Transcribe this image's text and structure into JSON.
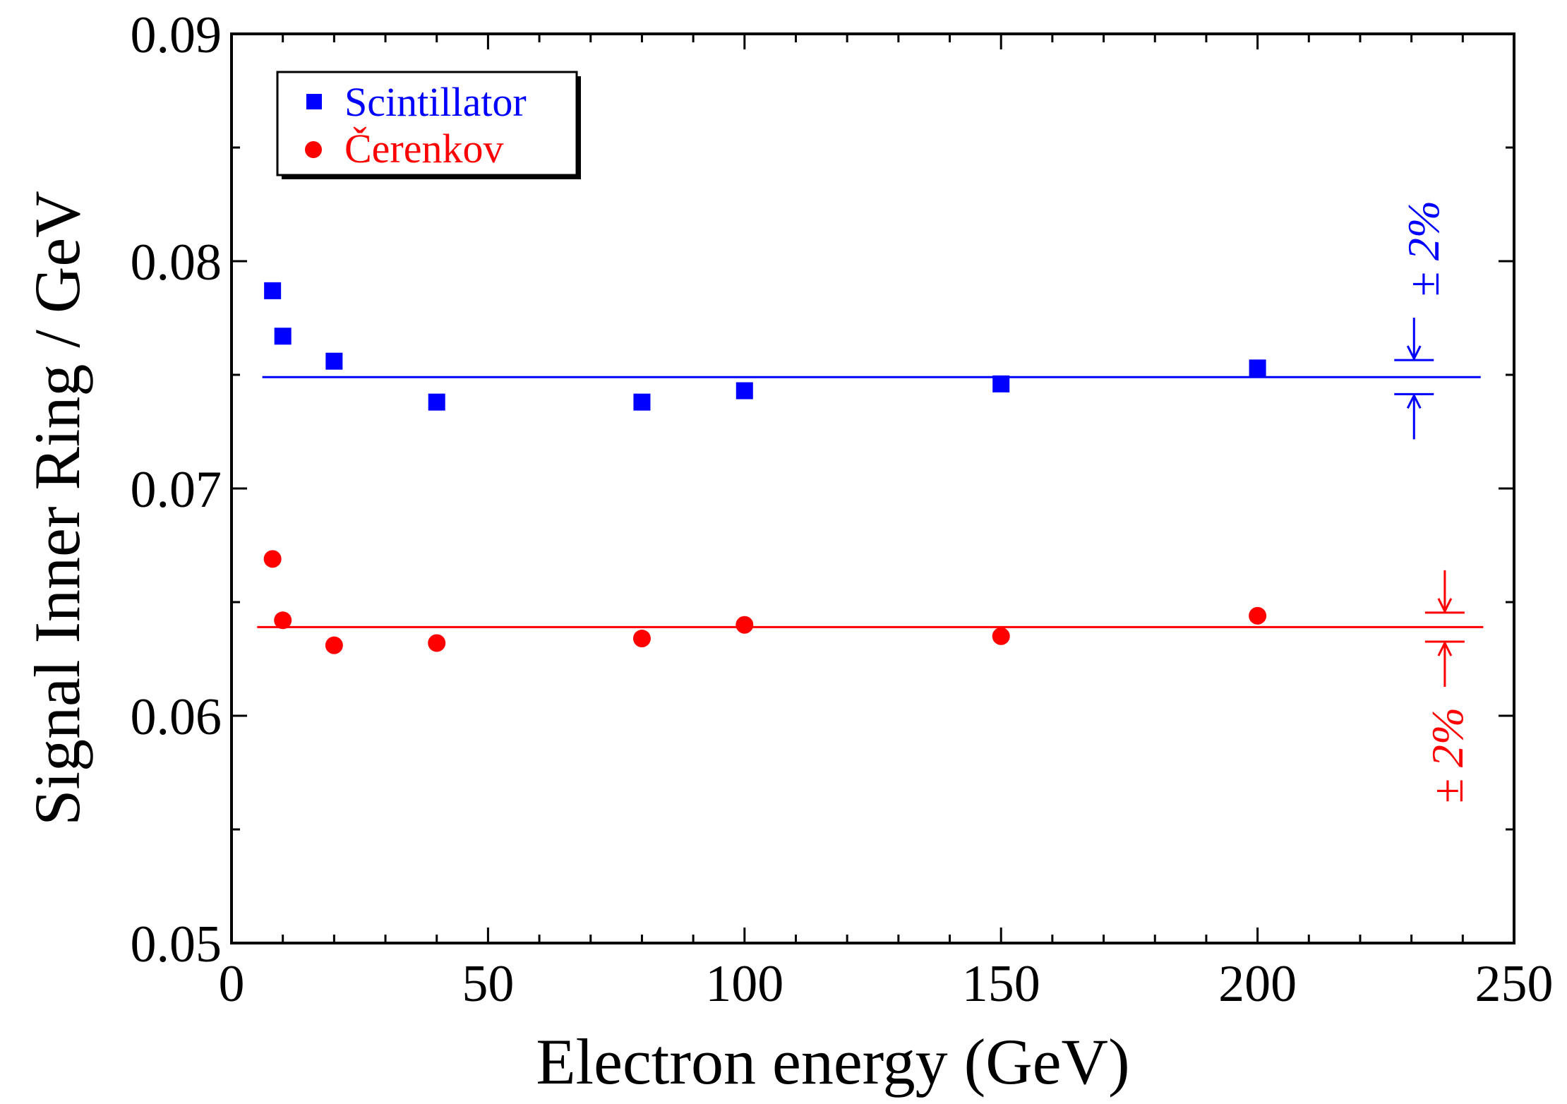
{
  "chart_data": {
    "type": "scatter",
    "title": "",
    "xlabel": "Electron energy (GeV)",
    "ylabel": "Signal Inner Ring / GeV",
    "xlim": [
      0,
      250
    ],
    "ylim": [
      0.05,
      0.09
    ],
    "x_ticks": [
      "0",
      "50",
      "100",
      "150",
      "200",
      "250"
    ],
    "y_ticks": [
      "0.05",
      "0.06",
      "0.07",
      "0.08",
      "0.09"
    ],
    "grid": false,
    "legend_position": "top-left",
    "series": [
      {
        "name": "Scintillator",
        "color": "#0000ff",
        "marker": "square",
        "x": [
          8,
          10,
          20,
          40,
          80,
          100,
          150,
          200
        ],
        "y": [
          0.0787,
          0.0767,
          0.0756,
          0.0738,
          0.0738,
          0.0743,
          0.0746,
          0.0753
        ],
        "mean_line": 0.0749
      },
      {
        "name": "Čerenkov",
        "color": "#ff0000",
        "marker": "circle",
        "x": [
          8,
          10,
          20,
          40,
          80,
          100,
          150,
          200
        ],
        "y": [
          0.0669,
          0.0642,
          0.0631,
          0.0632,
          0.0634,
          0.064,
          0.0635,
          0.0644
        ],
        "mean_line": 0.0639
      }
    ],
    "annotations": [
      {
        "text": "± 2%",
        "color": "#0000ff"
      },
      {
        "text": "± 2%",
        "color": "#ff0000"
      }
    ]
  }
}
